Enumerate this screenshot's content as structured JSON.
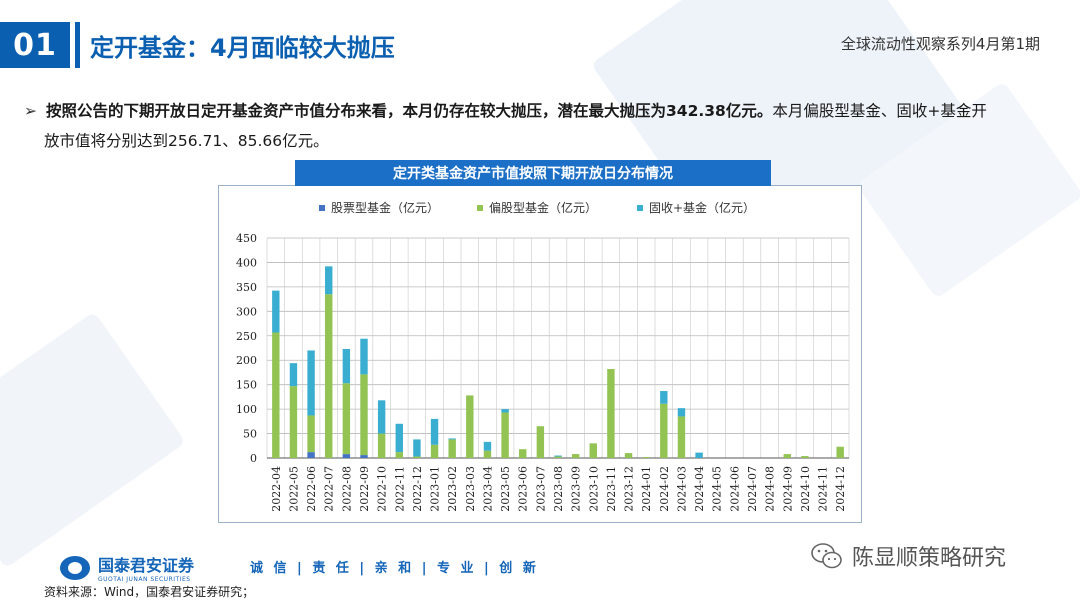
{
  "header": {
    "page_number": "01",
    "title": "定开基金：4月面临较大抛压",
    "series_title": "全球流动性观察系列4月第1期"
  },
  "bullet": {
    "bold_text": "按照公告的下期开放日定开基金资产市值分布来看，本月仍存在较大抛压，潜在最大抛压为342.38亿元。",
    "normal_text_1": "本月偏股型基金、固收+基金开",
    "normal_text_2": "放市值将分别达到256.71、85.66亿元。"
  },
  "chart_header": "定开类基金资产市值按照下期开放日分布情况",
  "chart_data": {
    "type": "bar",
    "stacked": true,
    "legend_position": "top",
    "grid": true,
    "ylim": [
      0,
      450
    ],
    "yticks": [
      "0",
      "50",
      "100",
      "150",
      "200",
      "250",
      "300",
      "350",
      "400",
      "450"
    ],
    "categories": [
      "2022-04",
      "2022-05",
      "2022-06",
      "2022-07",
      "2022-08",
      "2022-09",
      "2022-10",
      "2022-11",
      "2022-12",
      "2023-01",
      "2023-02",
      "2023-03",
      "2023-04",
      "2023-05",
      "2023-06",
      "2023-07",
      "2023-08",
      "2023-09",
      "2023-10",
      "2023-11",
      "2023-12",
      "2024-01",
      "2024-02",
      "2024-03",
      "2024-04",
      "2024-05",
      "2024-06",
      "2024-07",
      "2024-08",
      "2024-09",
      "2024-10",
      "2024-11",
      "2024-12"
    ],
    "series": [
      {
        "name": "股票型基金（亿元）",
        "color": "#4472c4",
        "values": [
          0,
          0,
          12,
          0,
          8,
          6,
          0,
          0,
          0,
          0,
          0,
          0,
          0,
          0,
          0,
          0,
          0,
          0,
          0,
          0,
          0,
          0,
          0,
          0,
          0,
          0,
          0,
          0,
          0,
          0,
          0,
          0,
          0
        ]
      },
      {
        "name": "偏股型基金（亿元）",
        "color": "#92c353",
        "values": [
          256.71,
          147,
          75,
          335,
          145,
          165,
          50,
          12,
          3,
          27,
          38,
          128,
          15,
          93,
          18,
          65,
          3,
          8,
          30,
          182,
          10,
          2,
          111,
          85,
          0,
          0,
          0,
          0,
          0,
          8,
          4,
          0,
          23
        ]
      },
      {
        "name": "固收+基金（亿元）",
        "color": "#3aaed0",
        "values": [
          85.66,
          47,
          133,
          57,
          70,
          73,
          68,
          58,
          35,
          53,
          2,
          0,
          18,
          7,
          0,
          0,
          2,
          0,
          0,
          0,
          0,
          0,
          26,
          17,
          11,
          0,
          0,
          0,
          0,
          0,
          0,
          0,
          0
        ]
      }
    ]
  },
  "footer": {
    "logo_text": "国泰君安证券",
    "logo_sub": "GUOTAI JUNAN SECURITIES",
    "motto": "诚 信 | 责 任 | 亲 和 | 专 业 | 创 新",
    "source": "资料来源：Wind，国泰君安证券研究；",
    "watermark": "陈显顺策略研究"
  }
}
